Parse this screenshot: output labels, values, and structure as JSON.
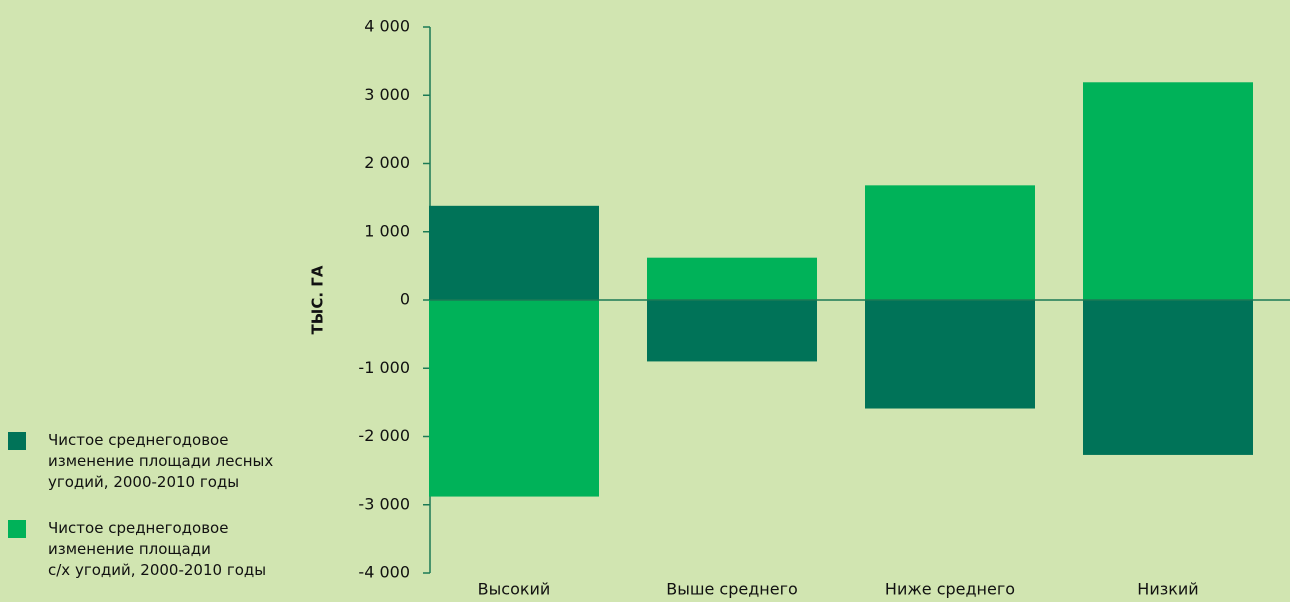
{
  "chart_data": {
    "type": "bar",
    "y_label": "ТЫС. ГА",
    "categories": [
      "Высокий",
      "Выше среднего",
      "Ниже среднего",
      "Низкий"
    ],
    "series": [
      {
        "name": "Чистое среднегодовое\nизменение площади лесных\nугодий, 2000-2010 годы",
        "color": "#007358",
        "values": [
          1380,
          -900,
          -1590,
          -2270
        ]
      },
      {
        "name": "Чистое среднегодовое\nизменение площади\nс/х угодий, 2000-2010 годы",
        "color": "#00b259",
        "values": [
          -2880,
          620,
          1680,
          3190
        ]
      }
    ],
    "ylim": [
      -4000,
      4000
    ],
    "yticks": [
      {
        "value": -4000,
        "label": "-4 000"
      },
      {
        "value": -3000,
        "label": "-3 000"
      },
      {
        "value": -2000,
        "label": "-2 000"
      },
      {
        "value": -1000,
        "label": "-1 000"
      },
      0,
      {
        "value": 1000,
        "label": "1 000"
      },
      {
        "value": 2000,
        "label": "2 000"
      },
      {
        "value": 3000,
        "label": "3 000"
      },
      {
        "value": 4000,
        "label": "4 000"
      }
    ],
    "legend": "bottom-left"
  }
}
